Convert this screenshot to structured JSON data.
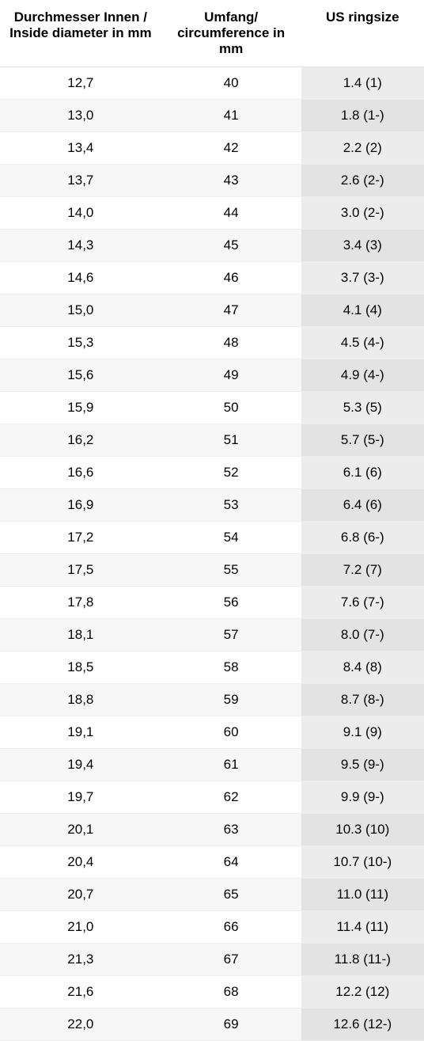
{
  "table": {
    "columns": [
      "Durchmesser Innen / Inside diameter in mm",
      "Umfang/ circumference in mm",
      "US ringsize"
    ],
    "header_fontsize": 17,
    "cell_fontsize": 17,
    "header_fontweight": "bold",
    "text_color": "#000000",
    "border_color": "#eeeeee",
    "col_widths": [
      "38%",
      "33%",
      "29%"
    ],
    "row_colors_col12": {
      "odd": "#ffffff",
      "even": "#f7f7f7"
    },
    "row_colors_col3": {
      "odd": "#ececec",
      "even": "#e3e3e3"
    },
    "rows": [
      [
        "12,7",
        "40",
        "1.4 (1)"
      ],
      [
        "13,0",
        "41",
        "1.8 (1-)"
      ],
      [
        "13,4",
        "42",
        "2.2 (2)"
      ],
      [
        "13,7",
        "43",
        "2.6 (2-)"
      ],
      [
        "14,0",
        "44",
        "3.0 (2-)"
      ],
      [
        "14,3",
        "45",
        "3.4 (3)"
      ],
      [
        "14,6",
        "46",
        "3.7 (3-)"
      ],
      [
        "15,0",
        "47",
        "4.1 (4)"
      ],
      [
        "15,3",
        "48",
        "4.5 (4-)"
      ],
      [
        "15,6",
        "49",
        "4.9 (4-)"
      ],
      [
        "15,9",
        "50",
        "5.3 (5)"
      ],
      [
        "16,2",
        "51",
        "5.7 (5-)"
      ],
      [
        "16,6",
        "52",
        "6.1 (6)"
      ],
      [
        "16,9",
        "53",
        "6.4 (6)"
      ],
      [
        "17,2",
        "54",
        "6.8 (6-)"
      ],
      [
        "17,5",
        "55",
        "7.2 (7)"
      ],
      [
        "17,8",
        "56",
        "7.6 (7-)"
      ],
      [
        "18,1",
        "57",
        "8.0 (7-)"
      ],
      [
        "18,5",
        "58",
        "8.4 (8)"
      ],
      [
        "18,8",
        "59",
        "8.7 (8-)"
      ],
      [
        "19,1",
        "60",
        "9.1 (9)"
      ],
      [
        "19,4",
        "61",
        "9.5 (9-)"
      ],
      [
        "19,7",
        "62",
        "9.9 (9-)"
      ],
      [
        "20,1",
        "63",
        "10.3 (10)"
      ],
      [
        "20,4",
        "64",
        "10.7 (10-)"
      ],
      [
        "20,7",
        "65",
        "11.0 (11)"
      ],
      [
        "21,0",
        "66",
        "11.4 (11)"
      ],
      [
        "21,3",
        "67",
        "11.8 (11-)"
      ],
      [
        "21,6",
        "68",
        "12.2 (12)"
      ],
      [
        "22,0",
        "69",
        "12.6 (12-)"
      ]
    ]
  }
}
